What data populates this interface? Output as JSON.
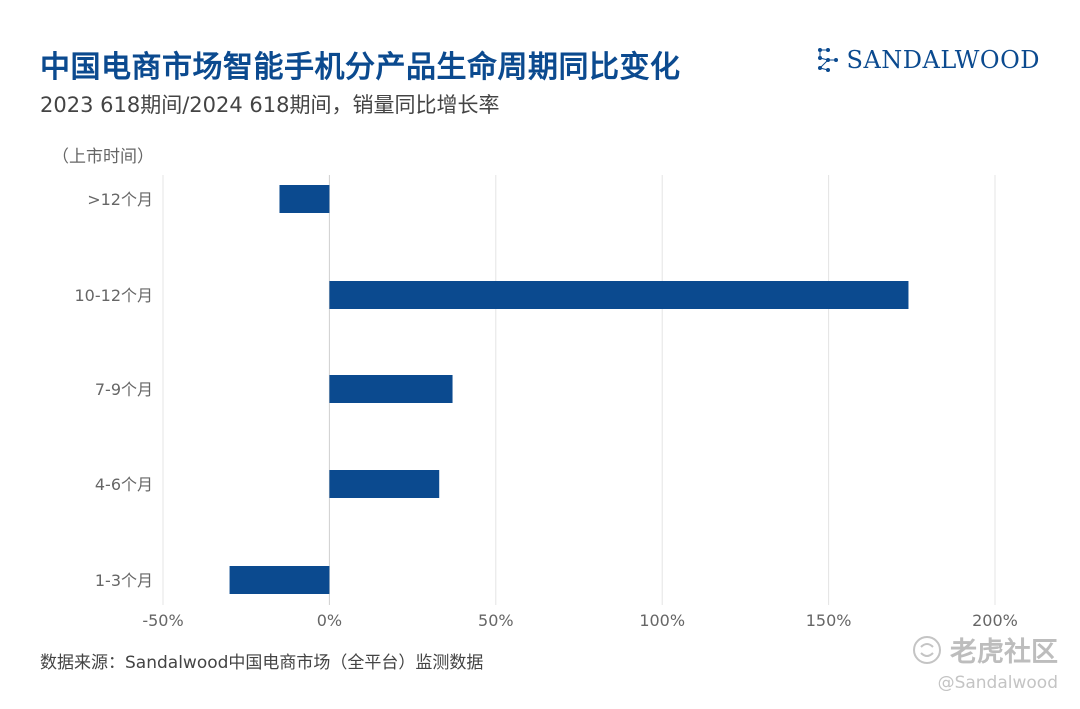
{
  "header": {
    "title": "中国电商市场智能手机分产品生命周期同比变化",
    "subtitle": "2023 618期间/2024 618期间，销量同比增长率"
  },
  "brand": {
    "name": "SANDALWOOD",
    "icon": "sandalwood-logo-icon"
  },
  "footer": {
    "source": "数据来源：Sandalwood中国电商市场（全平台）监测数据"
  },
  "watermark": {
    "community": "老虎社区",
    "handle": "@Sandalwood",
    "icon": "tiger-community-logo-icon"
  },
  "colors": {
    "bar": "#0b4a8f",
    "title": "#0b4a8f",
    "grid": "#e4e4e4"
  },
  "chart_data": {
    "type": "bar",
    "orientation": "horizontal",
    "title": "",
    "xlabel": "",
    "ylabel": "（上市时间）",
    "categories": [
      ">12个月",
      "10-12个月",
      "7-9个月",
      "4-6个月",
      "1-3个月"
    ],
    "values": [
      -15,
      174,
      37,
      33,
      -30
    ],
    "xlim": [
      -50,
      200
    ],
    "x_ticks": [
      -50,
      0,
      50,
      100,
      150,
      200
    ],
    "x_tick_labels": [
      "-50%",
      "0%",
      "50%",
      "100%",
      "150%",
      "200%"
    ],
    "grid": true,
    "legend": "none"
  }
}
